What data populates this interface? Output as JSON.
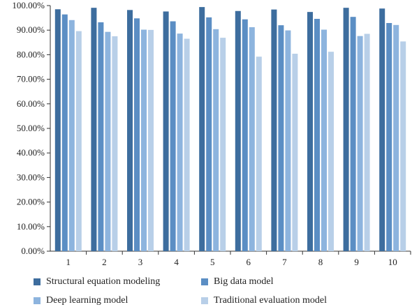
{
  "chart_data": {
    "type": "bar",
    "categories": [
      "1",
      "2",
      "3",
      "4",
      "5",
      "6",
      "7",
      "8",
      "9",
      "10"
    ],
    "series": [
      {
        "name": "Structural equation modeling",
        "color": "#3d6d9e",
        "values": [
          98.5,
          99.1,
          98.2,
          97.6,
          99.4,
          97.8,
          98.4,
          97.4,
          99.1,
          98.8
        ]
      },
      {
        "name": "Big data model",
        "color": "#5b8ec4",
        "values": [
          96.4,
          93.2,
          94.8,
          93.6,
          95.2,
          94.4,
          92.0,
          94.6,
          95.4,
          92.9
        ]
      },
      {
        "name": "Deep learning model",
        "color": "#8db4de",
        "values": [
          94.1,
          89.3,
          90.2,
          88.6,
          90.4,
          91.2,
          89.9,
          90.2,
          87.6,
          92.1
        ]
      },
      {
        "name": "Traditional evaluation model",
        "color": "#b8cfe8",
        "values": [
          89.6,
          87.5,
          90.1,
          86.5,
          86.9,
          79.2,
          80.4,
          81.2,
          88.5,
          85.4
        ]
      }
    ],
    "ylim": [
      0,
      100
    ],
    "yticks": [
      "0.00%",
      "10.00%",
      "20.00%",
      "30.00%",
      "40.00%",
      "50.00%",
      "60.00%",
      "70.00%",
      "80.00%",
      "90.00%",
      "100.00%"
    ],
    "grid": false,
    "legend_position": "bottom"
  }
}
